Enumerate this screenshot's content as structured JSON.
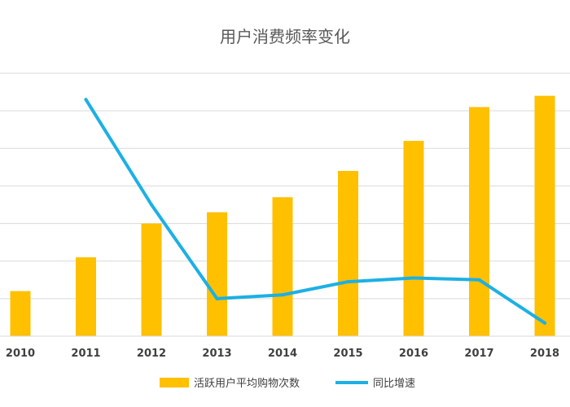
{
  "chart_data": {
    "type": "bar",
    "title": "用户消费频率变化",
    "categories": [
      "2010",
      "2011",
      "2012",
      "2013",
      "2014",
      "2015",
      "2016",
      "2017",
      "2018"
    ],
    "series": [
      {
        "name": "活跃用户平均购物次数",
        "type": "bar",
        "color": "#FFC000",
        "values": [
          12,
          21,
          30,
          33,
          37,
          44,
          52,
          61,
          64
        ]
      },
      {
        "name": "同比增速",
        "type": "line",
        "color": "#1CB0E4",
        "values": [
          null,
          63,
          35,
          10,
          11,
          14.5,
          15.5,
          15,
          3.5
        ]
      }
    ],
    "ylim": [
      0,
      70
    ],
    "grid": true,
    "legend_position": "bottom"
  }
}
